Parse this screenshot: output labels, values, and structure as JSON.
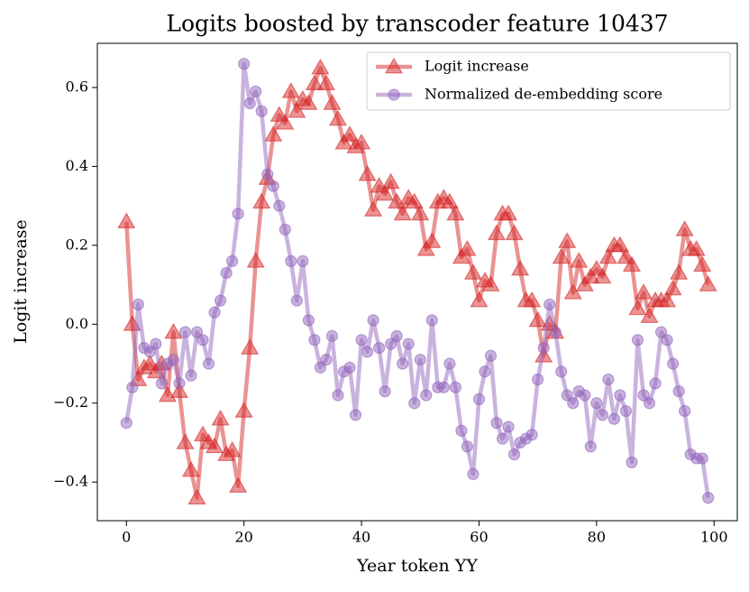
{
  "chart_data": {
    "type": "line",
    "title": "Logits boosted by transcoder feature 10437",
    "xlabel": "Year token YY",
    "ylabel": "Logit increase",
    "x": [
      0,
      1,
      2,
      3,
      4,
      5,
      6,
      7,
      8,
      9,
      10,
      11,
      12,
      13,
      14,
      15,
      16,
      17,
      18,
      19,
      20,
      21,
      22,
      23,
      24,
      25,
      26,
      27,
      28,
      29,
      30,
      31,
      32,
      33,
      34,
      35,
      36,
      37,
      38,
      39,
      40,
      41,
      42,
      43,
      44,
      45,
      46,
      47,
      48,
      49,
      50,
      51,
      52,
      53,
      54,
      55,
      56,
      57,
      58,
      59,
      60,
      61,
      62,
      63,
      64,
      65,
      66,
      67,
      68,
      69,
      70,
      71,
      72,
      73,
      74,
      75,
      76,
      77,
      78,
      79,
      80,
      81,
      82,
      83,
      84,
      85,
      86,
      87,
      88,
      89,
      90,
      91,
      92,
      93,
      94,
      95,
      96,
      97,
      98,
      99
    ],
    "series": [
      {
        "name": "Logit increase",
        "color": "#d62728",
        "marker": "triangle",
        "values": [
          0.26,
          0.0,
          -0.14,
          -0.11,
          -0.1,
          -0.12,
          -0.1,
          -0.18,
          -0.02,
          -0.17,
          -0.3,
          -0.37,
          -0.44,
          -0.28,
          -0.3,
          -0.31,
          -0.24,
          -0.33,
          -0.32,
          -0.41,
          -0.22,
          -0.06,
          0.16,
          0.31,
          0.37,
          0.48,
          0.53,
          0.51,
          0.59,
          0.54,
          0.57,
          0.56,
          0.61,
          0.65,
          0.61,
          0.56,
          0.52,
          0.46,
          0.48,
          0.45,
          0.46,
          0.38,
          0.29,
          0.35,
          0.33,
          0.36,
          0.31,
          0.28,
          0.32,
          0.31,
          0.28,
          0.19,
          0.21,
          0.31,
          0.32,
          0.31,
          0.28,
          0.17,
          0.19,
          0.13,
          0.06,
          0.11,
          0.1,
          0.23,
          0.28,
          0.28,
          0.23,
          0.14,
          0.06,
          0.06,
          0.01,
          -0.08,
          0.0,
          -0.02,
          0.17,
          0.21,
          0.08,
          0.16,
          0.1,
          0.12,
          0.14,
          0.12,
          0.17,
          0.2,
          0.2,
          0.17,
          0.15,
          0.04,
          0.08,
          0.02,
          0.06,
          0.06,
          0.06,
          0.09,
          0.13,
          0.24,
          0.19,
          0.19,
          0.15,
          0.1
        ]
      },
      {
        "name": "Normalized de-embedding score",
        "color": "#9467bd",
        "marker": "circle",
        "values": [
          -0.25,
          -0.16,
          0.05,
          -0.06,
          -0.07,
          -0.05,
          -0.15,
          -0.1,
          -0.09,
          -0.15,
          -0.02,
          -0.13,
          -0.02,
          -0.04,
          -0.1,
          0.03,
          0.06,
          0.13,
          0.16,
          0.28,
          0.66,
          0.56,
          0.59,
          0.54,
          0.38,
          0.35,
          0.3,
          0.24,
          0.16,
          0.06,
          0.16,
          0.01,
          -0.04,
          -0.11,
          -0.09,
          -0.03,
          -0.18,
          -0.12,
          -0.11,
          -0.23,
          -0.04,
          -0.07,
          0.01,
          -0.06,
          -0.17,
          -0.05,
          -0.03,
          -0.1,
          -0.05,
          -0.2,
          -0.09,
          -0.18,
          0.01,
          -0.16,
          -0.16,
          -0.1,
          -0.16,
          -0.27,
          -0.31,
          -0.38,
          -0.19,
          -0.12,
          -0.08,
          -0.25,
          -0.29,
          -0.26,
          -0.33,
          -0.3,
          -0.29,
          -0.28,
          -0.14,
          -0.06,
          0.05,
          -0.02,
          -0.12,
          -0.18,
          -0.2,
          -0.17,
          -0.18,
          -0.31,
          -0.2,
          -0.23,
          -0.14,
          -0.24,
          -0.18,
          -0.22,
          -0.35,
          -0.04,
          -0.18,
          -0.2,
          -0.15,
          -0.02,
          -0.04,
          -0.1,
          -0.17,
          -0.22,
          -0.33,
          -0.34,
          -0.34,
          -0.44
        ]
      }
    ],
    "xlim": [
      -4.95,
      103.95
    ],
    "xticks": [
      0,
      20,
      40,
      60,
      80,
      100
    ],
    "ylim": [
      -0.498,
      0.712
    ],
    "yticks": [
      {
        "value": -0.4,
        "label": "−0.4"
      },
      {
        "value": -0.2,
        "label": "−0.2"
      },
      {
        "value": 0.0,
        "label": "0.0"
      },
      {
        "value": 0.2,
        "label": "0.2"
      },
      {
        "value": 0.4,
        "label": "0.4"
      },
      {
        "value": 0.6,
        "label": "0.6"
      }
    ],
    "legend": "upper right"
  }
}
